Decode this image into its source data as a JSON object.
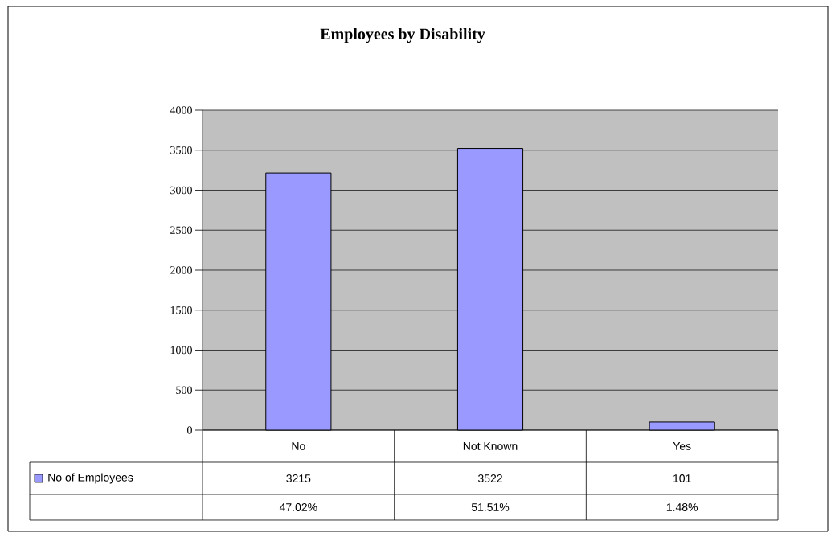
{
  "chart_data": {
    "type": "bar",
    "title": "Employees by Disability",
    "categories": [
      "No",
      "Not Known",
      "Yes"
    ],
    "series": [
      {
        "name": "No of Employees",
        "color": "#9999ff",
        "values": [
          3215,
          3522,
          101
        ]
      }
    ],
    "ylim": [
      0,
      4000
    ],
    "yticks": [
      0,
      500,
      1000,
      1500,
      2000,
      2500,
      3000,
      3500,
      4000
    ],
    "grid": "y",
    "legend": "bottom left",
    "data_labels": true,
    "annotations": [
      "47.02%",
      "51.51%",
      "1.48%"
    ]
  }
}
